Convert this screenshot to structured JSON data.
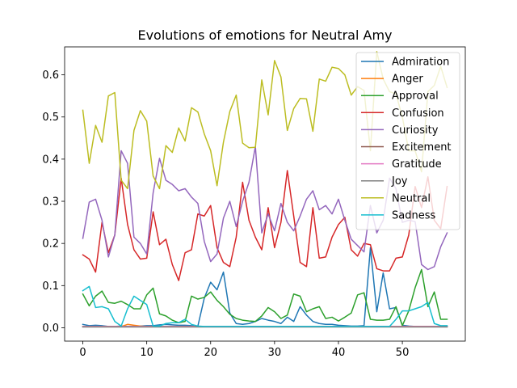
{
  "chart_data": {
    "type": "line",
    "title": "Evolutions of emotions for Neutral Amy",
    "xlabel": "",
    "ylabel": "",
    "xlim": [
      -2.85,
      59.85
    ],
    "ylim": [
      -0.0317,
      0.6663
    ],
    "xticks": [
      0,
      10,
      20,
      30,
      40,
      50
    ],
    "yticks": [
      0.0,
      0.1,
      0.2,
      0.3,
      0.4,
      0.5,
      0.6
    ],
    "ytick_labels": [
      "0.0",
      "0.1",
      "0.2",
      "0.3",
      "0.4",
      "0.5",
      "0.6"
    ],
    "legend_position": "top-right",
    "grid": false,
    "x": [
      0,
      1,
      2,
      3,
      4,
      5,
      6,
      7,
      8,
      9,
      10,
      11,
      12,
      13,
      14,
      15,
      16,
      17,
      18,
      19,
      20,
      21,
      22,
      23,
      24,
      25,
      26,
      27,
      28,
      29,
      30,
      31,
      32,
      33,
      34,
      35,
      36,
      37,
      38,
      39,
      40,
      41,
      42,
      43,
      44,
      45,
      46,
      47,
      48,
      49,
      50,
      51,
      52,
      53,
      54,
      55,
      56,
      57
    ],
    "series": [
      {
        "name": "Admiration",
        "color": "#1f77b4",
        "values": [
          0.008,
          0.005,
          0.006,
          0.005,
          0.003,
          0.003,
          0.004,
          0.003,
          0.003,
          0.004,
          0.005,
          0.005,
          0.007,
          0.008,
          0.007,
          0.006,
          0.006,
          0.005,
          0.004,
          0.07,
          0.108,
          0.09,
          0.132,
          0.035,
          0.01,
          0.008,
          0.01,
          0.015,
          0.022,
          0.018,
          0.015,
          0.01,
          0.025,
          0.015,
          0.05,
          0.03,
          0.015,
          0.01,
          0.008,
          0.008,
          0.006,
          0.005,
          0.004,
          0.004,
          0.005,
          0.19,
          0.038,
          0.13,
          0.045,
          0.048,
          0.006,
          0.004,
          0.003,
          0.003,
          0.003,
          0.003,
          0.003,
          0.003
        ]
      },
      {
        "name": "Anger",
        "color": "#ff7f0e",
        "values": [
          0.003,
          0.003,
          0.003,
          0.003,
          0.003,
          0.003,
          0.003,
          0.008,
          0.006,
          0.004,
          0.003,
          0.003,
          0.003,
          0.003,
          0.003,
          0.003,
          0.003,
          0.003,
          0.003,
          0.003,
          0.003,
          0.003,
          0.003,
          0.003,
          0.003,
          0.003,
          0.003,
          0.003,
          0.003,
          0.003,
          0.003,
          0.003,
          0.003,
          0.003,
          0.003,
          0.003,
          0.003,
          0.003,
          0.003,
          0.003,
          0.003,
          0.003,
          0.003,
          0.003,
          0.003,
          0.003,
          0.003,
          0.003,
          0.003,
          0.003,
          0.003,
          0.003,
          0.003,
          0.003,
          0.003,
          0.003,
          0.003,
          0.003
        ]
      },
      {
        "name": "Approval",
        "color": "#2ca02c",
        "values": [
          0.08,
          0.052,
          0.075,
          0.087,
          0.06,
          0.058,
          0.063,
          0.055,
          0.045,
          0.045,
          0.078,
          0.094,
          0.033,
          0.028,
          0.018,
          0.012,
          0.015,
          0.075,
          0.068,
          0.072,
          0.085,
          0.065,
          0.05,
          0.032,
          0.022,
          0.018,
          0.016,
          0.015,
          0.028,
          0.048,
          0.038,
          0.022,
          0.03,
          0.08,
          0.075,
          0.038,
          0.045,
          0.05,
          0.022,
          0.025,
          0.016,
          0.025,
          0.035,
          0.078,
          0.083,
          0.02,
          0.018,
          0.018,
          0.02,
          0.05,
          0.005,
          0.04,
          0.095,
          0.138,
          0.05,
          0.085,
          0.02,
          0.02
        ]
      },
      {
        "name": "Confusion",
        "color": "#d62728",
        "values": [
          0.173,
          0.163,
          0.132,
          0.25,
          0.178,
          0.22,
          0.355,
          0.245,
          0.185,
          0.163,
          0.165,
          0.275,
          0.197,
          0.21,
          0.15,
          0.112,
          0.178,
          0.185,
          0.27,
          0.265,
          0.29,
          0.19,
          0.155,
          0.145,
          0.215,
          0.345,
          0.255,
          0.215,
          0.185,
          0.285,
          0.19,
          0.25,
          0.373,
          0.265,
          0.155,
          0.145,
          0.285,
          0.165,
          0.168,
          0.215,
          0.245,
          0.262,
          0.185,
          0.17,
          0.2,
          0.197,
          0.14,
          0.135,
          0.135,
          0.165,
          0.168,
          0.22,
          0.335,
          0.285,
          0.358,
          0.255,
          0.235,
          0.335
        ]
      },
      {
        "name": "Curiosity",
        "color": "#9467bd",
        "values": [
          0.212,
          0.298,
          0.305,
          0.255,
          0.168,
          0.22,
          0.42,
          0.39,
          0.215,
          0.2,
          0.175,
          0.32,
          0.402,
          0.35,
          0.34,
          0.325,
          0.33,
          0.31,
          0.295,
          0.205,
          0.157,
          0.175,
          0.26,
          0.3,
          0.24,
          0.3,
          0.345,
          0.43,
          0.225,
          0.27,
          0.23,
          0.295,
          0.25,
          0.23,
          0.265,
          0.305,
          0.325,
          0.28,
          0.29,
          0.27,
          0.305,
          0.255,
          0.21,
          0.195,
          0.18,
          0.29,
          0.225,
          0.255,
          0.355,
          0.33,
          0.25,
          0.255,
          0.252,
          0.15,
          0.138,
          0.145,
          0.192,
          0.225
        ]
      },
      {
        "name": "Excitement",
        "color": "#8c564b",
        "values": [
          0.002,
          0.002,
          0.002,
          0.002,
          0.002,
          0.002,
          0.002,
          0.002,
          0.002,
          0.002,
          0.002,
          0.002,
          0.002,
          0.002,
          0.002,
          0.002,
          0.002,
          0.002,
          0.002,
          0.002,
          0.002,
          0.002,
          0.002,
          0.002,
          0.002,
          0.002,
          0.002,
          0.002,
          0.002,
          0.002,
          0.002,
          0.002,
          0.002,
          0.002,
          0.002,
          0.002,
          0.002,
          0.002,
          0.002,
          0.002,
          0.002,
          0.002,
          0.002,
          0.002,
          0.002,
          0.002,
          0.002,
          0.002,
          0.002,
          0.002,
          0.002,
          0.002,
          0.002,
          0.002,
          0.002,
          0.002,
          0.002,
          0.002
        ]
      },
      {
        "name": "Gratitude",
        "color": "#e377c2",
        "values": [
          0.003,
          0.003,
          0.003,
          0.003,
          0.003,
          0.003,
          0.003,
          0.003,
          0.003,
          0.003,
          0.003,
          0.003,
          0.003,
          0.003,
          0.003,
          0.003,
          0.003,
          0.003,
          0.003,
          0.003,
          0.003,
          0.003,
          0.003,
          0.003,
          0.003,
          0.003,
          0.003,
          0.003,
          0.003,
          0.003,
          0.003,
          0.003,
          0.003,
          0.003,
          0.003,
          0.003,
          0.003,
          0.003,
          0.003,
          0.003,
          0.003,
          0.003,
          0.003,
          0.003,
          0.003,
          0.003,
          0.003,
          0.003,
          0.003,
          0.003,
          0.003,
          0.003,
          0.003,
          0.003,
          0.003,
          0.003,
          0.003,
          0.003
        ]
      },
      {
        "name": "Joy",
        "color": "#7f7f7f",
        "values": [
          0.002,
          0.002,
          0.002,
          0.002,
          0.002,
          0.002,
          0.002,
          0.002,
          0.002,
          0.002,
          0.002,
          0.002,
          0.002,
          0.002,
          0.002,
          0.002,
          0.002,
          0.002,
          0.002,
          0.002,
          0.002,
          0.002,
          0.002,
          0.002,
          0.002,
          0.002,
          0.002,
          0.002,
          0.002,
          0.002,
          0.002,
          0.002,
          0.002,
          0.002,
          0.002,
          0.002,
          0.002,
          0.002,
          0.002,
          0.002,
          0.002,
          0.002,
          0.002,
          0.002,
          0.002,
          0.002,
          0.002,
          0.002,
          0.002,
          0.002,
          0.002,
          0.002,
          0.002,
          0.002,
          0.002,
          0.002,
          0.002,
          0.002
        ]
      },
      {
        "name": "Neutral",
        "color": "#bcbd22",
        "values": [
          0.516,
          0.39,
          0.48,
          0.44,
          0.55,
          0.558,
          0.35,
          0.33,
          0.468,
          0.515,
          0.49,
          0.36,
          0.33,
          0.432,
          0.416,
          0.474,
          0.443,
          0.522,
          0.512,
          0.46,
          0.42,
          0.337,
          0.44,
          0.513,
          0.552,
          0.438,
          0.427,
          0.428,
          0.588,
          0.505,
          0.634,
          0.595,
          0.468,
          0.52,
          0.544,
          0.543,
          0.466,
          0.59,
          0.585,
          0.618,
          0.615,
          0.6,
          0.552,
          0.572,
          0.563,
          0.42,
          0.655,
          0.59,
          0.56,
          0.555,
          0.5,
          0.42,
          0.42,
          0.37,
          0.56,
          0.575,
          0.62,
          0.57
        ]
      },
      {
        "name": "Sadness",
        "color": "#17becf",
        "values": [
          0.088,
          0.098,
          0.048,
          0.05,
          0.045,
          0.015,
          0.004,
          0.045,
          0.075,
          0.065,
          0.055,
          0.004,
          0.004,
          0.01,
          0.012,
          0.012,
          0.02,
          0.008,
          0.004,
          0.003,
          0.003,
          0.003,
          0.003,
          0.003,
          0.003,
          0.003,
          0.003,
          0.003,
          0.003,
          0.003,
          0.003,
          0.003,
          0.003,
          0.003,
          0.003,
          0.003,
          0.003,
          0.003,
          0.003,
          0.003,
          0.003,
          0.003,
          0.003,
          0.003,
          0.003,
          0.003,
          0.003,
          0.003,
          0.003,
          0.02,
          0.04,
          0.04,
          0.045,
          0.05,
          0.06,
          0.01,
          0.005,
          0.005
        ]
      }
    ]
  }
}
